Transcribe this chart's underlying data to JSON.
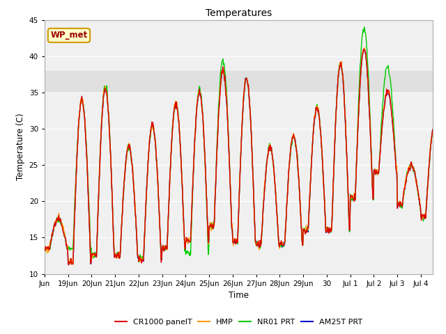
{
  "title": "Temperatures",
  "xlabel": "Time",
  "ylabel": "Temperature (C)",
  "ylim": [
    10,
    45
  ],
  "annotation_text": "WP_met",
  "annotation_bg": "#ffffcc",
  "annotation_border": "#cc9900",
  "annotation_text_color": "#990000",
  "shaded_region": [
    35,
    38
  ],
  "shaded_color": "#e0e0e0",
  "legend_labels": [
    "CR1000 panelT",
    "HMP",
    "NR01 PRT",
    "AM25T PRT"
  ],
  "line_colors": [
    "#dd0000",
    "#ff9900",
    "#00cc00",
    "#0000cc"
  ],
  "background_color": "#f0f0f0",
  "grid_color": "#ffffff",
  "tick_labels": [
    "Jun",
    "19Jun",
    "20Jun",
    "21Jun",
    "22Jun",
    "23Jun",
    "24Jun",
    "25Jun",
    "26Jun",
    "27Jun",
    "28Jun",
    "29Jun",
    "30",
    "Jul 1",
    "Jul 2",
    "Jul 3",
    "Jul 4"
  ],
  "day_maxes": [
    17.5,
    34.0,
    35.5,
    27.5,
    30.5,
    33.5,
    35.0,
    38.0,
    37.0,
    27.5,
    29.0,
    33.0,
    39.0,
    41.0,
    35.0,
    25.0,
    30.5
  ],
  "day_mins": [
    13.5,
    11.5,
    12.5,
    12.5,
    12.0,
    13.5,
    14.5,
    16.5,
    14.5,
    14.0,
    14.0,
    16.0,
    16.0,
    20.5,
    24.0,
    19.5,
    18.0
  ],
  "nr01_day_maxes": [
    17.5,
    34.0,
    36.0,
    27.5,
    30.5,
    33.5,
    35.5,
    39.5,
    37.0,
    27.5,
    29.0,
    33.0,
    39.0,
    44.0,
    38.5,
    25.0,
    30.5
  ],
  "nr01_day_mins": [
    13.5,
    13.5,
    12.5,
    12.5,
    12.0,
    13.5,
    13.0,
    16.5,
    14.5,
    14.0,
    14.0,
    16.0,
    16.0,
    20.5,
    24.0,
    19.5,
    18.0
  ]
}
